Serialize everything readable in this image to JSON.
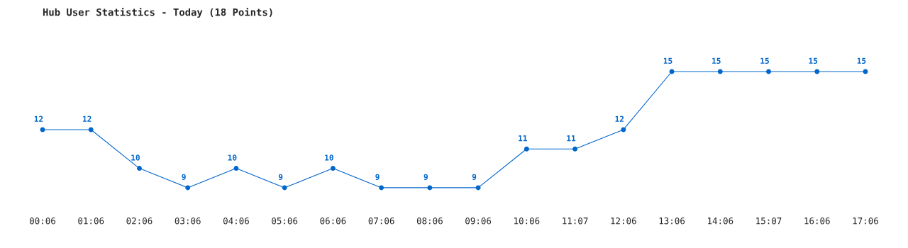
{
  "chart_data": {
    "type": "line",
    "title": "Hub User Statistics - Today (18 Points)",
    "categories": [
      "00:06",
      "01:06",
      "02:06",
      "03:06",
      "04:06",
      "05:06",
      "06:06",
      "07:06",
      "08:06",
      "09:06",
      "10:06",
      "11:07",
      "12:06",
      "13:06",
      "14:06",
      "15:07",
      "16:06",
      "17:06"
    ],
    "series": [
      {
        "color": "#0066cc",
        "values": [
          12,
          12,
          10,
          9,
          10,
          9,
          10,
          9,
          9,
          9,
          11,
          11,
          12,
          15,
          15,
          15,
          15,
          15
        ]
      }
    ],
    "data_labels": true,
    "marker": "circle",
    "grid": false,
    "legend": false
  }
}
